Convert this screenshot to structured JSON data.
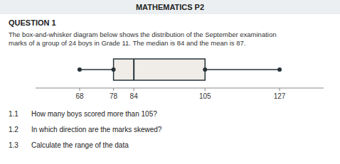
{
  "chart_data": {
    "type": "box",
    "title": "MATHEMATICS P2",
    "subtitle": "QUESTION 1",
    "annotations": [
      "The box-and-whisker diagram below shows the distribution of the September examination",
      "marks of a group of 24 boys in Grade 11. The median is 84 and the mean is 87."
    ],
    "questions": [
      {
        "label": "1.1",
        "text": "How many boys scored more than 105?"
      },
      {
        "label": "1.2",
        "text": "In which direction are the marks skewed?"
      },
      {
        "label": "1.3",
        "text": "Calculate the range of the data"
      }
    ],
    "min": 68,
    "q1": 78,
    "median": 84,
    "q3": 105,
    "max": 127,
    "color": "#f0ede8",
    "xlim": [
      55,
      140
    ],
    "xticks": [
      68,
      78,
      84,
      105,
      127
    ]
  }
}
